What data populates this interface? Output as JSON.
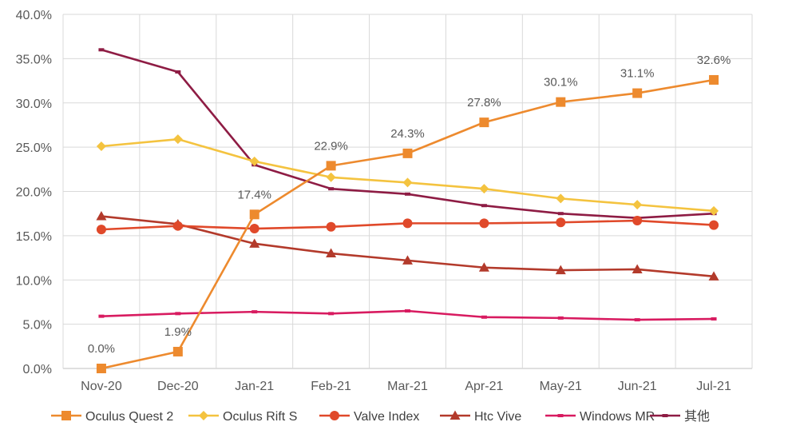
{
  "chart_data": {
    "type": "line",
    "title": "",
    "xlabel": "",
    "ylabel": "",
    "categories": [
      "Nov-20",
      "Dec-20",
      "Jan-21",
      "Feb-21",
      "Mar-21",
      "Apr-21",
      "May-21",
      "Jun-21",
      "Jul-21"
    ],
    "y_ticks": [
      "0.0%",
      "5.0%",
      "10.0%",
      "15.0%",
      "20.0%",
      "25.0%",
      "30.0%",
      "35.0%",
      "40.0%"
    ],
    "ylim": [
      0,
      40
    ],
    "grid": true,
    "legend_position": "bottom",
    "series": [
      {
        "name": "Oculus Quest 2",
        "color": "#ED8A2E",
        "marker": "square",
        "values": [
          0.0,
          1.9,
          17.4,
          22.9,
          24.3,
          27.8,
          30.1,
          31.1,
          32.6
        ],
        "labels": [
          "0.0%",
          "1.9%",
          "17.4%",
          "22.9%",
          "24.3%",
          "27.8%",
          "30.1%",
          "31.1%",
          "32.6%"
        ]
      },
      {
        "name": "Oculus Rift S",
        "color": "#F4C33F",
        "marker": "diamond",
        "values": [
          25.1,
          25.9,
          23.4,
          21.6,
          21.0,
          20.3,
          19.2,
          18.5,
          17.8
        ]
      },
      {
        "name": "Valve Index",
        "color": "#E0492A",
        "marker": "circle",
        "values": [
          15.7,
          16.1,
          15.8,
          16.0,
          16.4,
          16.4,
          16.5,
          16.7,
          16.2
        ]
      },
      {
        "name": "Htc Vive",
        "color": "#B33A2B",
        "marker": "triangle",
        "values": [
          17.2,
          16.3,
          14.1,
          13.0,
          12.2,
          11.4,
          11.1,
          11.2,
          10.4
        ]
      },
      {
        "name": "Windows MR",
        "color": "#D81B60",
        "marker": "dash",
        "values": [
          5.9,
          6.2,
          6.4,
          6.2,
          6.5,
          5.8,
          5.7,
          5.5,
          5.6
        ]
      },
      {
        "name": "其他",
        "color": "#8E1C44",
        "marker": "dash",
        "values": [
          36.0,
          33.5,
          23.0,
          20.3,
          19.7,
          18.4,
          17.5,
          17.0,
          17.5
        ]
      }
    ]
  }
}
